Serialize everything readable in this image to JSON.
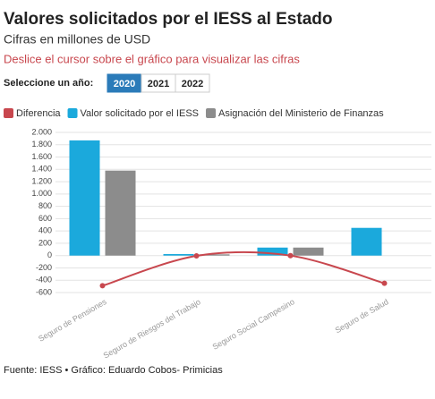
{
  "chart_data": {
    "type": "bar-line",
    "title": "Valores solicitados por el IESS al Estado",
    "subtitle": "Cifras en millones de USD",
    "instruction": "Deslice el cursor sobre el gráfico para visualizar las cifras",
    "source": "Fuente: IESS • Gráfico: Eduardo Cobos- Primicias",
    "year_selector": {
      "label": "Seleccione un año:",
      "options": [
        "2020",
        "2021",
        "2022"
      ],
      "selected": 0
    },
    "categories": [
      "Seguro de Pensiones",
      "Seguro de Riesgos del Trabajo",
      "Seguro Social Campesino",
      "Seguro de Salud"
    ],
    "series": [
      {
        "name": "Diferencia",
        "color": "#c8474e",
        "kind": "line",
        "values": [
          -490,
          -5,
          0,
          -450
        ]
      },
      {
        "name": "Valor solicitado por el IESS",
        "color": "#1ba9dc",
        "kind": "bar",
        "values": [
          1870,
          25,
          130,
          450
        ]
      },
      {
        "name": "Asignación del Ministerio de Finanzas",
        "color": "#8c8c8c",
        "kind": "bar",
        "values": [
          1380,
          20,
          130,
          0
        ]
      }
    ],
    "ylim": [
      -600,
      2000
    ],
    "yticks": [
      -600,
      -400,
      -200,
      0,
      200,
      400,
      600,
      800,
      {
        "value": 1000,
        "label": "1.000"
      },
      {
        "value": 1200,
        "label": "1.200"
      },
      {
        "value": 1400,
        "label": "1.400"
      },
      {
        "value": 1600,
        "label": "1.600"
      },
      {
        "value": 1800,
        "label": "1.800"
      },
      {
        "value": 2000,
        "label": "2.000"
      }
    ],
    "grid": true
  }
}
